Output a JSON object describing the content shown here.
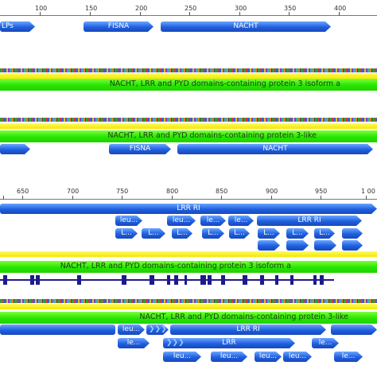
{
  "top_ruler": {
    "ticks": [
      "100",
      "150",
      "200",
      "250",
      "300",
      "350",
      "400"
    ]
  },
  "mid_ruler": {
    "ticks": [
      "650",
      "700",
      "750",
      "800",
      "850",
      "900",
      "950",
      "1 00"
    ]
  },
  "track_top": {
    "domains": [
      "LPs",
      "FISNA",
      "NACHT"
    ]
  },
  "isoform_a_label": "NACHT, LRR and PYD domains-containing protein 3 isoform a",
  "like_label": "NACHT, LRR and PYD domains-containing protein 3-like",
  "track_like_top": {
    "domains": [
      "FISNA",
      "NACHT"
    ]
  },
  "track_mid": {
    "row1": [
      "LRR RI",
      "LRR RI"
    ],
    "row2": [
      "leu...",
      "leu...",
      "le...",
      "le...",
      "le..."
    ],
    "row3": [
      "L...",
      "L...",
      "L...",
      "L...",
      "L...",
      "L...",
      "L...",
      "L..."
    ]
  },
  "isoform_a_label_2": "NACHT, LRR and PYD domains-containing protein 3 isoform a",
  "like_label_2": "NACHT, LRR and PYD domains-containing protein 3-like",
  "track_bottom": {
    "row1": [
      "leu...",
      "LRR RI",
      "le..."
    ],
    "row2": [
      "LRR",
      "le..."
    ],
    "row3": [
      "leu...",
      "leu...",
      "leu...",
      "leu...",
      "le..."
    ]
  },
  "colors": {
    "domain_blue": "#1f5fe0",
    "label_green": "#27e600",
    "label_yellow": "#f2e800",
    "exon_navy": "#1c1c8c"
  }
}
